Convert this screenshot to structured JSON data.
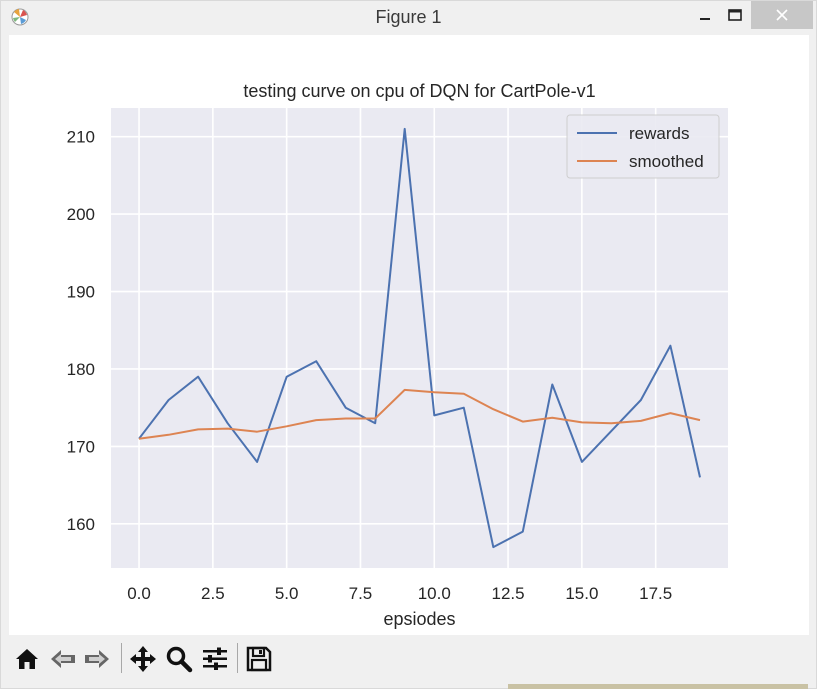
{
  "window": {
    "title": "Figure 1",
    "controls": {
      "minimize": "—",
      "maximize": "☐",
      "close": "✕"
    }
  },
  "toolbar": {
    "buttons": [
      {
        "name": "home-icon",
        "tooltip": "Reset original view"
      },
      {
        "name": "back-icon",
        "tooltip": "Back to previous view"
      },
      {
        "name": "forward-icon",
        "tooltip": "Forward to next view"
      },
      {
        "name": "pan-icon",
        "tooltip": "Pan axes"
      },
      {
        "name": "zoom-icon",
        "tooltip": "Zoom to rectangle"
      },
      {
        "name": "configure-subplots-icon",
        "tooltip": "Configure subplots"
      },
      {
        "name": "save-icon",
        "tooltip": "Save the figure"
      }
    ]
  },
  "colors": {
    "axes_bg": "#eaeaf2",
    "grid": "#ffffff",
    "rewards": "#4c72b0",
    "smoothed": "#dd8452"
  },
  "chart_data": {
    "type": "line",
    "title": "testing curve on cpu of DQN for CartPole-v1",
    "xlabel": "epsiodes",
    "ylabel": "",
    "x": [
      0,
      1,
      2,
      3,
      4,
      5,
      6,
      7,
      8,
      9,
      10,
      11,
      12,
      13,
      14,
      15,
      16,
      17,
      18,
      19
    ],
    "series": [
      {
        "name": "rewards",
        "color": "#4c72b0",
        "values": [
          171,
          176,
          179,
          173,
          168,
          179,
          181,
          175,
          173,
          211,
          174,
          175,
          157,
          159,
          178,
          168,
          172,
          176,
          183,
          166
        ]
      },
      {
        "name": "smoothed",
        "color": "#dd8452",
        "values": [
          171,
          171.5,
          172.2,
          172.3,
          171.9,
          172.6,
          173.4,
          173.6,
          173.6,
          177.3,
          177.0,
          176.8,
          174.8,
          173.2,
          173.7,
          173.1,
          173.0,
          173.3,
          174.3,
          173.4
        ]
      }
    ],
    "xticks": [
      "0.0",
      "2.5",
      "5.0",
      "7.5",
      "10.0",
      "12.5",
      "15.0",
      "17.5"
    ],
    "xtick_values": [
      0,
      2.5,
      5,
      7.5,
      10,
      12.5,
      15,
      17.5
    ],
    "yticks": [
      "160",
      "170",
      "180",
      "190",
      "200",
      "210"
    ],
    "ytick_values": [
      160,
      170,
      180,
      190,
      200,
      210
    ],
    "xlim": [
      -0.95,
      19.95
    ],
    "ylim": [
      154.3,
      213.7
    ],
    "grid": true,
    "legend_position": "top-right"
  }
}
